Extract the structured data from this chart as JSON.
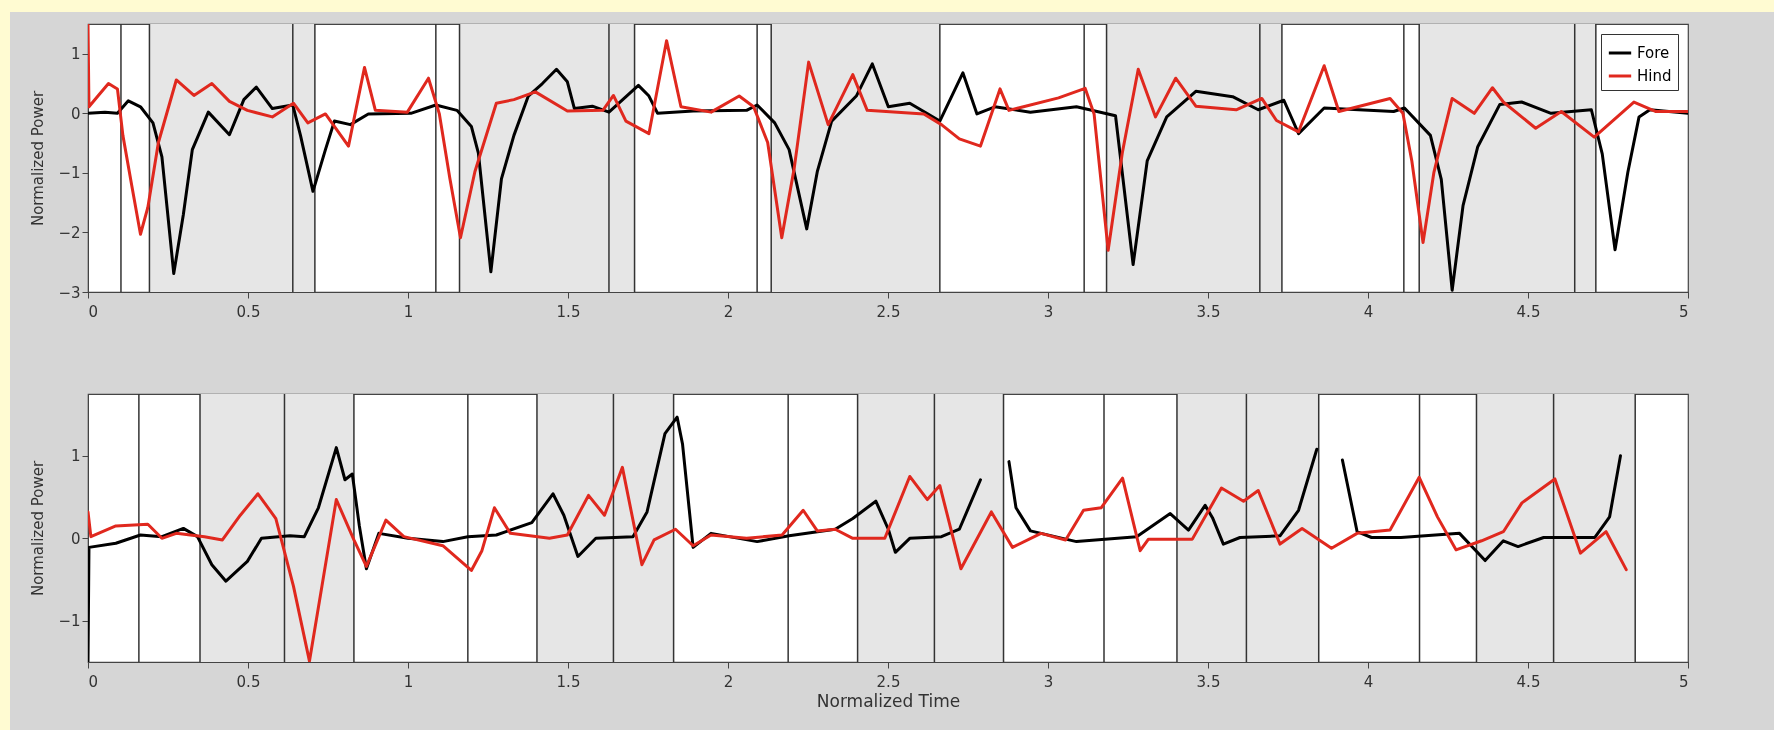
{
  "chart_data": [
    {
      "type": "line",
      "ylabel": "Normalized Power",
      "xlim": [
        0,
        5
      ],
      "ylim": [
        -3,
        1.5
      ],
      "xticks": [
        0,
        0.5,
        1,
        1.5,
        2,
        2.5,
        3,
        3.5,
        4,
        4.5,
        5
      ],
      "yticks": [
        -3,
        -2,
        -1,
        0,
        1
      ],
      "grid": false,
      "legend": "top right",
      "series": [
        {
          "name": "Fore",
          "color": "#000000",
          "x": [
            0,
            0.053,
            0.092,
            0.126,
            0.164,
            0.203,
            0.231,
            0.268,
            0.298,
            0.326,
            0.376,
            0.442,
            0.487,
            0.526,
            0.576,
            0.64,
            0.664,
            0.703,
            0.742,
            0.77,
            0.82,
            0.876,
            1.009,
            1.087,
            1.153,
            1.198,
            1.22,
            1.259,
            1.292,
            1.331,
            1.376,
            1.42,
            1.464,
            1.498,
            1.52,
            1.576,
            1.628,
            1.72,
            1.753,
            1.78,
            1.891,
            2.058,
            2.091,
            2.146,
            2.191,
            2.246,
            2.279,
            2.324,
            2.401,
            2.451,
            2.501,
            2.568,
            2.662,
            2.734,
            2.778,
            2.834,
            2.945,
            3.089,
            3.211,
            3.266,
            3.31,
            3.371,
            3.462,
            3.577,
            3.657,
            3.737,
            3.783,
            3.863,
            4.08,
            4.114,
            4.195,
            4.229,
            4.263,
            4.297,
            4.343,
            4.412,
            4.48,
            4.572,
            4.698,
            4.732,
            4.772,
            4.812,
            4.847,
            4.881,
            5.0
          ],
          "values": [
            0,
            0.02,
            0,
            0.21,
            0.11,
            -0.16,
            -0.73,
            -2.69,
            -1.7,
            -0.61,
            0.02,
            -0.36,
            0.23,
            0.44,
            0.08,
            0.14,
            -0.37,
            -1.31,
            -0.61,
            -0.13,
            -0.19,
            -0.01,
            0,
            0.14,
            0.05,
            -0.22,
            -0.67,
            -2.66,
            -1.1,
            -0.37,
            0.29,
            0.5,
            0.74,
            0.53,
            0.08,
            0.12,
            0.02,
            0.47,
            0.29,
            0,
            0.04,
            0.05,
            0.14,
            -0.16,
            -0.61,
            -1.94,
            -0.98,
            -0.13,
            0.29,
            0.83,
            0.11,
            0.17,
            -0.13,
            0.68,
            -0.01,
            0.11,
            0.02,
            0.11,
            -0.04,
            -2.54,
            -0.8,
            -0.06,
            0.37,
            0.28,
            0.06,
            0.22,
            -0.34,
            0.09,
            0.03,
            0.09,
            -0.37,
            -1.11,
            -2.97,
            -1.55,
            -0.56,
            0.15,
            0.19,
            0,
            0.06,
            -0.68,
            -2.29,
            -0.99,
            -0.06,
            0.06,
            0
          ]
        },
        {
          "name": "Hind",
          "color": "#e0281e",
          "x": [
            0,
            0.003,
            0.031,
            0.064,
            0.092,
            0.109,
            0.137,
            0.164,
            0.187,
            0.22,
            0.276,
            0.331,
            0.387,
            0.442,
            0.498,
            0.576,
            0.642,
            0.687,
            0.742,
            0.814,
            0.864,
            0.898,
            0.998,
            1.064,
            1.098,
            1.131,
            1.164,
            1.209,
            1.276,
            1.331,
            1.398,
            1.498,
            1.609,
            1.642,
            1.681,
            1.753,
            1.808,
            1.853,
            1.947,
            2.035,
            2.08,
            2.124,
            2.168,
            2.207,
            2.252,
            2.313,
            2.39,
            2.435,
            2.612,
            2.667,
            2.723,
            2.789,
            2.85,
            2.878,
            3.033,
            3.116,
            3.144,
            3.188,
            3.232,
            3.282,
            3.336,
            3.399,
            3.462,
            3.588,
            3.668,
            3.714,
            3.783,
            3.863,
            3.909,
            4.069,
            4.109,
            4.137,
            4.172,
            4.206,
            4.263,
            4.332,
            4.389,
            4.423,
            4.524,
            4.604,
            4.707,
            4.831,
            4.9,
            5.0
          ],
          "values": [
            1.49,
            0.11,
            0.29,
            0.5,
            0.41,
            -0.37,
            -1.22,
            -2.03,
            -1.58,
            -0.49,
            0.56,
            0.3,
            0.5,
            0.2,
            0.05,
            -0.06,
            0.17,
            -0.16,
            -0.01,
            -0.55,
            0.77,
            0.05,
            0.02,
            0.59,
            -0.01,
            -1.1,
            -2.09,
            -0.98,
            0.17,
            0.23,
            0.36,
            0.04,
            0.05,
            0.3,
            -0.13,
            -0.34,
            1.22,
            0.11,
            0.02,
            0.29,
            0.11,
            -0.49,
            -2.09,
            -0.92,
            0.86,
            -0.19,
            0.65,
            0.05,
            -0.01,
            -0.19,
            -0.43,
            -0.55,
            0.41,
            0.05,
            0.26,
            0.42,
            -0.01,
            -2.3,
            -0.67,
            0.74,
            -0.06,
            0.59,
            0.12,
            0.06,
            0.25,
            -0.12,
            -0.31,
            0.8,
            0.03,
            0.25,
            0,
            -0.8,
            -2.17,
            -0.99,
            0.25,
            0,
            0.43,
            0.19,
            -0.25,
            0.03,
            -0.4,
            0.19,
            0.03,
            0.03
          ]
        }
      ],
      "bands": [
        {
          "axis": "x",
          "from": 0.192,
          "to": 0.709,
          "color": "#e6e6e6"
        },
        {
          "axis": "x",
          "from": 1.161,
          "to": 1.708,
          "color": "#e6e6e6"
        },
        {
          "axis": "x",
          "from": 2.135,
          "to": 2.662,
          "color": "#e6e6e6"
        },
        {
          "axis": "x",
          "from": 3.183,
          "to": 3.731,
          "color": "#e6e6e6"
        },
        {
          "axis": "x",
          "from": 4.16,
          "to": 4.712,
          "color": "#e6e6e6"
        }
      ],
      "ref_lines": [
        {
          "axis": "x",
          "value": 0.103,
          "color": "#333333"
        },
        {
          "axis": "x",
          "value": 0.192,
          "color": "#333333"
        },
        {
          "axis": "x",
          "value": 0.64,
          "color": "#333333"
        },
        {
          "axis": "x",
          "value": 0.709,
          "color": "#333333"
        },
        {
          "axis": "x",
          "value": 1.087,
          "color": "#333333"
        },
        {
          "axis": "x",
          "value": 1.161,
          "color": "#333333"
        },
        {
          "axis": "x",
          "value": 1.628,
          "color": "#333333"
        },
        {
          "axis": "x",
          "value": 1.708,
          "color": "#333333"
        },
        {
          "axis": "x",
          "value": 2.091,
          "color": "#333333"
        },
        {
          "axis": "x",
          "value": 2.135,
          "color": "#333333"
        },
        {
          "axis": "x",
          "value": 2.662,
          "color": "#333333"
        },
        {
          "axis": "x",
          "value": 3.113,
          "color": "#333333"
        },
        {
          "axis": "x",
          "value": 3.183,
          "color": "#333333"
        },
        {
          "axis": "x",
          "value": 3.662,
          "color": "#333333"
        },
        {
          "axis": "x",
          "value": 3.731,
          "color": "#333333"
        },
        {
          "axis": "x",
          "value": 4.112,
          "color": "#333333"
        },
        {
          "axis": "x",
          "value": 4.16,
          "color": "#333333"
        },
        {
          "axis": "x",
          "value": 4.646,
          "color": "#333333"
        },
        {
          "axis": "x",
          "value": 4.712,
          "color": "#333333"
        }
      ]
    },
    {
      "type": "line",
      "xlabel": "Normalized Time",
      "ylabel": "Normalized Power",
      "xlim": [
        0,
        5
      ],
      "ylim": [
        -1.5,
        1.75
      ],
      "xticks": [
        0,
        0.5,
        1,
        1.5,
        2,
        2.5,
        3,
        3.5,
        4,
        4.5,
        5
      ],
      "yticks": [
        -1,
        0,
        1
      ],
      "grid": false,
      "series": [
        {
          "color": "#000000",
          "x": [
            0,
            0.003,
            0.087,
            0.164,
            0.231,
            0.298,
            0.342,
            0.387,
            0.431,
            0.498,
            0.542,
            0.631,
            0.676,
            0.72,
            0.776,
            0.803,
            0.826,
            0.848,
            0.87,
            0.909,
            1.0,
            1.109,
            1.187,
            1.276,
            1.387,
            1.453,
            1.487,
            1.531,
            1.587,
            1.703,
            1.747,
            1.803,
            1.841,
            1.858,
            1.891,
            1.947,
            2.091,
            2.191,
            2.335,
            2.39,
            2.462,
            2.501,
            2.523,
            2.568,
            2.667,
            2.723,
            2.789,
            2.834,
            2.856,
            2.878,
            2.9,
            2.945,
            3.089,
            3.277,
            3.382,
            3.439,
            3.491,
            3.514,
            3.548,
            3.6,
            3.725,
            3.783,
            3.84,
            3.863,
            3.88,
            3.92,
            3.966,
            4.011,
            4.103,
            4.286,
            4.366,
            4.423,
            4.469,
            4.549,
            4.709,
            4.755,
            4.789
          ],
          "values": [
            -1.49,
            -0.11,
            -0.06,
            0.04,
            0.02,
            0.12,
            0.02,
            -0.32,
            -0.52,
            -0.28,
            0,
            0.03,
            0.02,
            0.37,
            1.1,
            0.71,
            0.78,
            0.15,
            -0.37,
            0.06,
            0,
            -0.04,
            0.02,
            0.04,
            0.19,
            0.54,
            0.28,
            -0.22,
            0,
            0.02,
            0.32,
            1.27,
            1.47,
            1.14,
            -0.11,
            0.06,
            -0.04,
            0.03,
            0.11,
            0.24,
            0.45,
            0.11,
            -0.17,
            0,
            0.02,
            0.11,
            0.71,
            null,
            null,
            0.93,
            0.37,
            0.09,
            -0.04,
            0.02,
            0.3,
            0.1,
            0.4,
            0.25,
            -0.07,
            0.01,
            0.03,
            0.34,
            1.08,
            null,
            null,
            0.95,
            0.08,
            0.01,
            0.01,
            0.06,
            -0.27,
            -0.03,
            -0.1,
            0.01,
            0.01,
            0.26,
            1.0
          ]
        },
        {
          "color": "#e0281e",
          "x": [
            0,
            0.009,
            0.087,
            0.187,
            0.231,
            0.276,
            0.364,
            0.42,
            0.476,
            0.531,
            0.587,
            0.642,
            0.692,
            0.731,
            0.776,
            0.831,
            0.87,
            0.931,
            0.987,
            1.109,
            1.198,
            1.231,
            1.27,
            1.32,
            1.442,
            1.498,
            1.564,
            1.614,
            1.67,
            1.731,
            1.769,
            1.836,
            1.891,
            1.947,
            2.058,
            2.169,
            2.235,
            2.279,
            2.335,
            2.39,
            2.49,
            2.568,
            2.623,
            2.662,
            2.728,
            2.823,
            2.889,
            2.978,
            3.055,
            3.111,
            3.166,
            3.233,
            3.288,
            3.314,
            3.451,
            3.542,
            3.611,
            3.657,
            3.725,
            3.794,
            3.886,
            3.966,
            4.069,
            4.16,
            4.217,
            4.275,
            4.355,
            4.423,
            4.481,
            4.584,
            4.664,
            4.744,
            4.807
          ],
          "values": [
            0.32,
            0.02,
            0.15,
            0.17,
            0,
            0.06,
            0.02,
            -0.02,
            0.28,
            0.54,
            0.24,
            -0.58,
            -1.49,
            -0.58,
            0.47,
            -0.02,
            -0.34,
            0.22,
            0.02,
            -0.09,
            -0.39,
            -0.15,
            0.37,
            0.06,
            0,
            0.04,
            0.52,
            0.28,
            0.86,
            -0.32,
            -0.02,
            0.11,
            -0.09,
            0.04,
            0,
            0.04,
            0.34,
            0.09,
            0.11,
            0,
            0,
            0.75,
            0.47,
            0.64,
            -0.37,
            0.32,
            -0.11,
            0.06,
            -0.02,
            0.34,
            0.37,
            0.73,
            -0.15,
            -0.01,
            -0.01,
            0.61,
            0.45,
            0.58,
            -0.07,
            0.12,
            -0.12,
            0.06,
            0.1,
            0.74,
            0.26,
            -0.14,
            -0.03,
            0.08,
            0.43,
            0.72,
            -0.18,
            0.08,
            -0.38
          ]
        }
      ],
      "bands": [
        {
          "axis": "x",
          "from": 0.35,
          "to": 0.831,
          "color": "#e6e6e6"
        },
        {
          "axis": "x",
          "from": 1.403,
          "to": 1.83,
          "color": "#e6e6e6"
        },
        {
          "axis": "x",
          "from": 2.405,
          "to": 2.861,
          "color": "#e6e6e6"
        },
        {
          "axis": "x",
          "from": 3.403,
          "to": 3.846,
          "color": "#e6e6e6"
        },
        {
          "axis": "x",
          "from": 4.339,
          "to": 4.835,
          "color": "#e6e6e6"
        }
      ],
      "ref_lines": [
        {
          "axis": "x",
          "value": 0.159,
          "color": "#333333"
        },
        {
          "axis": "x",
          "value": 0.35,
          "color": "#333333"
        },
        {
          "axis": "x",
          "value": 0.614,
          "color": "#333333"
        },
        {
          "axis": "x",
          "value": 0.831,
          "color": "#333333"
        },
        {
          "axis": "x",
          "value": 1.187,
          "color": "#333333"
        },
        {
          "axis": "x",
          "value": 1.403,
          "color": "#333333"
        },
        {
          "axis": "x",
          "value": 1.642,
          "color": "#333333"
        },
        {
          "axis": "x",
          "value": 1.83,
          "color": "#333333"
        },
        {
          "axis": "x",
          "value": 2.188,
          "color": "#333333"
        },
        {
          "axis": "x",
          "value": 2.405,
          "color": "#333333"
        },
        {
          "axis": "x",
          "value": 2.645,
          "color": "#333333"
        },
        {
          "axis": "x",
          "value": 2.861,
          "color": "#333333"
        },
        {
          "axis": "x",
          "value": 3.175,
          "color": "#333333"
        },
        {
          "axis": "x",
          "value": 3.403,
          "color": "#333333"
        },
        {
          "axis": "x",
          "value": 3.62,
          "color": "#333333"
        },
        {
          "axis": "x",
          "value": 3.846,
          "color": "#333333"
        },
        {
          "axis": "x",
          "value": 4.161,
          "color": "#333333"
        },
        {
          "axis": "x",
          "value": 4.339,
          "color": "#333333"
        },
        {
          "axis": "x",
          "value": 4.58,
          "color": "#333333"
        },
        {
          "axis": "x",
          "value": 4.835,
          "color": "#333333"
        }
      ]
    }
  ]
}
